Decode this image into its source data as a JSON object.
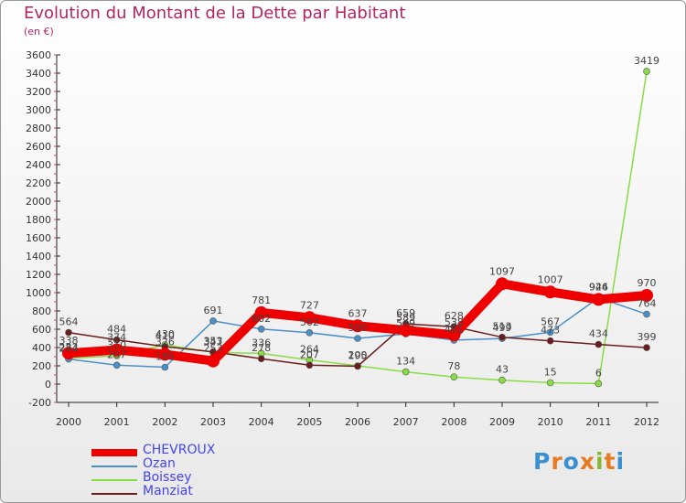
{
  "title": "Evolution du Montant de la Dette par Habitant",
  "subtitle": "(en €)",
  "logo": {
    "text": "Proxiti",
    "colors": [
      "#3a8fd0",
      "#e87a22",
      "#3a8fd0",
      "#e87a22",
      "#8ab832",
      "#e87a22",
      "#3a8fd0"
    ]
  },
  "chart_data": {
    "type": "line",
    "title": "Evolution du Montant de la Dette par Habitant",
    "subtitle": "(en €)",
    "x": [
      "2000",
      "2001",
      "2002",
      "2003",
      "2004",
      "2005",
      "2006",
      "2007",
      "2008",
      "2009",
      "2010",
      "2011",
      "2012"
    ],
    "ylim": [
      -200,
      3600
    ],
    "yticks": [
      -200,
      0,
      200,
      400,
      600,
      800,
      1000,
      1200,
      1400,
      1600,
      1800,
      2000,
      2200,
      2400,
      2600,
      2800,
      3000,
      3200,
      3400,
      3600
    ],
    "grid": false,
    "legend_position": "bottom-left",
    "series": [
      {
        "name": "CHEVROUX",
        "color": "#ee0000",
        "values": [
          338,
          374,
          326,
          253,
          781,
          727,
          637,
          589,
          538,
          1097,
          1007,
          926,
          970
        ]
      },
      {
        "name": "Ozan",
        "color": "#4a90c8",
        "values": [
          274,
          207,
          185,
          691,
          602,
          562,
          500,
          549,
          481,
          499,
          567,
          944,
          764
        ]
      },
      {
        "name": "Boissey",
        "color": "#88dd44",
        "values": [
          283,
          310,
          430,
          347,
          336,
          264,
          200,
          134,
          78,
          43,
          15,
          6,
          3419
        ]
      },
      {
        "name": "Manziat",
        "color": "#6b1c1c",
        "values": [
          564,
          484,
          410,
          353,
          278,
          207,
          195,
          659,
          628,
          513,
          473,
          434,
          399
        ]
      }
    ]
  }
}
